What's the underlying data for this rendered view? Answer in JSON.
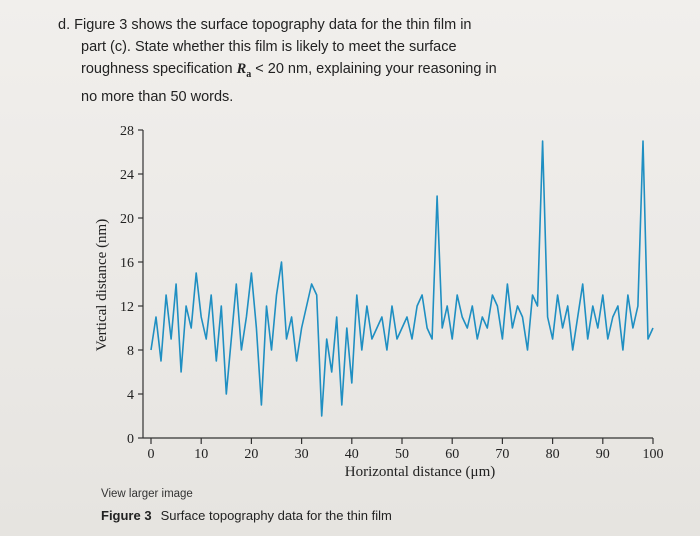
{
  "question": {
    "label": "d.",
    "line1": "Figure 3 shows the surface topography data for the thin film in",
    "line2": "part (c). State whether this film is likely to meet the surface",
    "line3_pre": "roughness specification",
    "ra_symbol": "R",
    "ra_sub": "a",
    "line3_post": "< 20 nm, explaining your reasoning in",
    "line4": "no more than 50 words."
  },
  "figure": {
    "view_larger": "View larger image",
    "caption_label": "Figure 3",
    "caption_text": "Surface topography data for the thin film"
  },
  "chart_data": {
    "type": "line",
    "xlabel": "Horizontal distance (μm)",
    "ylabel": "Vertical distance (nm)",
    "xlim": [
      0,
      100
    ],
    "ylim": [
      0,
      28
    ],
    "xticks": [
      0,
      10,
      20,
      30,
      40,
      50,
      60,
      70,
      80,
      90,
      100
    ],
    "yticks": [
      0,
      4,
      8,
      12,
      16,
      20,
      24,
      28
    ],
    "grid": false,
    "series_color": "#1f8fc2",
    "series": [
      {
        "x": [
          0,
          1,
          2,
          3,
          4,
          5,
          6,
          7,
          8,
          9,
          10,
          11,
          12,
          13,
          14,
          15,
          16,
          17,
          18,
          19,
          20,
          21,
          22,
          23,
          24,
          25,
          26,
          27,
          28,
          29,
          30,
          31,
          32,
          33,
          34,
          35,
          36,
          37,
          38,
          39,
          40,
          41,
          42,
          43,
          44,
          45,
          46,
          47,
          48,
          49,
          50,
          51,
          52,
          53,
          54,
          55,
          56,
          57,
          58,
          59,
          60,
          61,
          62,
          63,
          64,
          65,
          66,
          67,
          68,
          69,
          70,
          71,
          72,
          73,
          74,
          75,
          76,
          77,
          78,
          79,
          80,
          81,
          82,
          83,
          84,
          85,
          86,
          87,
          88,
          89,
          90,
          91,
          92,
          93,
          94,
          95,
          96,
          97,
          98,
          99,
          100
        ],
        "y": [
          8,
          11,
          7,
          13,
          9,
          14,
          6,
          12,
          10,
          15,
          11,
          9,
          13,
          7,
          12,
          4,
          9,
          14,
          8,
          11,
          15,
          10,
          3,
          12,
          8,
          13,
          16,
          9,
          11,
          7,
          10,
          12,
          14,
          13,
          2,
          9,
          6,
          11,
          3,
          10,
          5,
          13,
          8,
          12,
          9,
          10,
          11,
          8,
          12,
          9,
          10,
          11,
          9,
          12,
          13,
          10,
          9,
          22,
          10,
          12,
          9,
          13,
          11,
          10,
          12,
          9,
          11,
          10,
          13,
          12,
          9,
          14,
          10,
          12,
          11,
          8,
          13,
          12,
          27,
          11,
          9,
          13,
          10,
          12,
          8,
          11,
          14,
          9,
          12,
          10,
          13,
          9,
          11,
          12,
          8,
          13,
          10,
          12,
          27,
          9,
          10
        ]
      }
    ]
  }
}
